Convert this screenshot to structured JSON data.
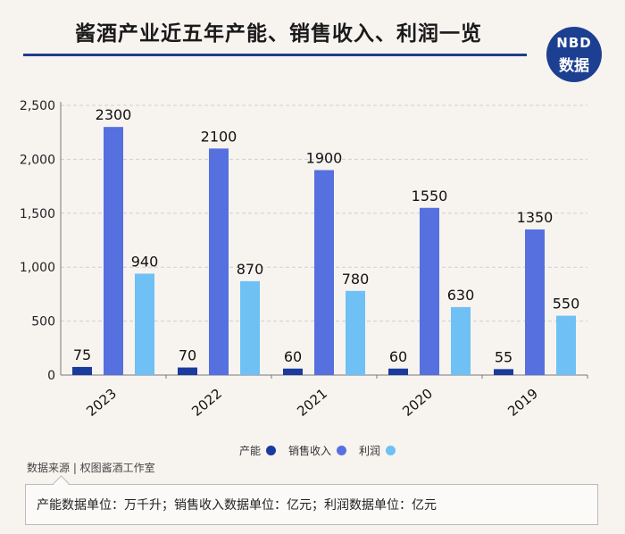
{
  "header": {
    "title": "酱酒产业近五年产能、销售收入、利润一览",
    "logo_line1": "NBD",
    "logo_line2": "数据"
  },
  "source": "数据来源 | 权图酱酒工作室",
  "note": "产能数据单位：万千升；销售收入数据单位：亿元；利润数据单位：亿元",
  "chart_data": {
    "type": "bar",
    "title": "酱酒产业近五年产能、销售收入、利润一览",
    "categories": [
      "2023",
      "2022",
      "2021",
      "2020",
      "2019"
    ],
    "series": [
      {
        "name": "产能",
        "values": [
          75,
          70,
          60,
          60,
          55
        ],
        "color": "#1a3a9e"
      },
      {
        "name": "销售收入",
        "values": [
          2300,
          2100,
          1900,
          1550,
          1350
        ],
        "color": "#5670e0"
      },
      {
        "name": "利润",
        "values": [
          940,
          870,
          780,
          630,
          550
        ],
        "color": "#6fc0f5"
      }
    ],
    "yticks": [
      "0",
      "500",
      "1,000",
      "1,500",
      "2,000",
      "2,500"
    ],
    "ylim": [
      0,
      2500
    ],
    "grid": true,
    "legend_position": "bottom"
  }
}
